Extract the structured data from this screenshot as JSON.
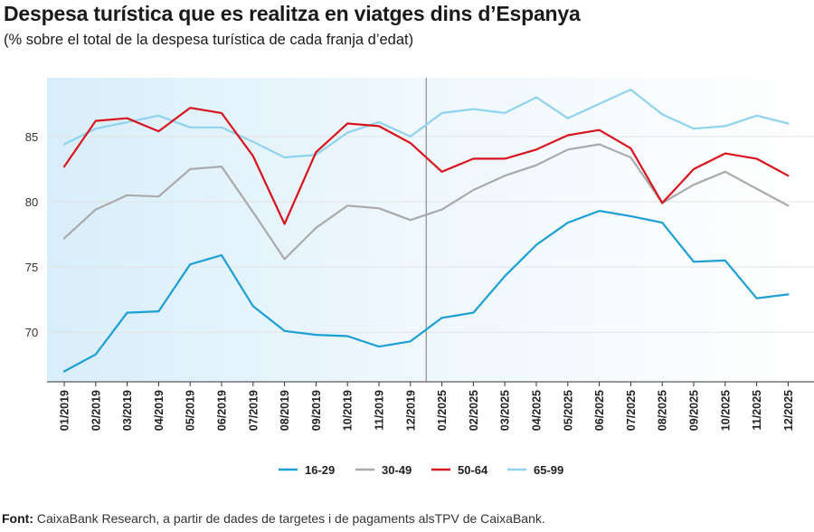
{
  "title": "Despesa turística que es realitza en viatges dins d’Espanya",
  "subtitle": "(% sobre el total de la despesa turística de cada franja d’edat)",
  "source_label": "Font:",
  "source_text": "CaixaBank Research, a partir de dades de targetes i de pagaments alsTPV de CaixaBank.",
  "colors": {
    "s1629": "#1a9fd6",
    "s3049": "#aaaaaa",
    "s5064": "#d7141e",
    "s6599": "#8fd3f0",
    "bg_left": "#d8eefa",
    "bg_right": "#ffffff",
    "grid": "#e3e3e3",
    "divider": "#777777"
  },
  "chart_data": {
    "type": "line",
    "title": "Despesa turística que es realitza en viatges dins d’Espanya",
    "subtitle": "(% sobre el total de la despesa turística de cada franja d’edat)",
    "xlabel": "",
    "ylabel": "",
    "ylim": [
      66.2,
      89.5
    ],
    "yticks": [
      70,
      75,
      80,
      85
    ],
    "grid": true,
    "legend": "bottom",
    "categories": [
      "01/2019",
      "02/2019",
      "03/2019",
      "04/2019",
      "05/2019",
      "06/2019",
      "07/2019",
      "08/2019",
      "09/2019",
      "10/2019",
      "11/2019",
      "12/2019",
      "01/2025",
      "02/2025",
      "03/2025",
      "04/2025",
      "05/2025",
      "06/2025",
      "07/2025",
      "08/2025",
      "09/2025",
      "10/2025",
      "11/2025",
      "12/2025"
    ],
    "series": [
      {
        "name": "16-29",
        "color": "#1a9fd6",
        "values": [
          67.0,
          68.3,
          71.5,
          71.6,
          75.2,
          75.9,
          72.0,
          70.1,
          69.8,
          69.7,
          68.9,
          69.3,
          71.1,
          71.5,
          74.3,
          76.7,
          78.4,
          79.3,
          78.9,
          78.4,
          75.4,
          75.5,
          72.6,
          72.9
        ]
      },
      {
        "name": "30-49",
        "color": "#aaaaaa",
        "values": [
          77.2,
          79.4,
          80.5,
          80.4,
          82.5,
          82.7,
          79.2,
          75.6,
          78.0,
          79.7,
          79.5,
          78.6,
          79.4,
          80.9,
          82.0,
          82.8,
          84.0,
          84.4,
          83.4,
          79.9,
          81.3,
          82.3,
          81.0,
          79.7
        ]
      },
      {
        "name": "50-64",
        "color": "#d7141e",
        "values": [
          82.7,
          86.2,
          86.4,
          85.4,
          87.2,
          86.8,
          83.5,
          78.3,
          83.8,
          86.0,
          85.8,
          84.5,
          82.3,
          83.3,
          83.3,
          84.0,
          85.1,
          85.5,
          84.1,
          79.9,
          82.5,
          83.7,
          83.3,
          82.0
        ]
      },
      {
        "name": "65-99",
        "color": "#8fd3f0",
        "values": [
          84.4,
          85.6,
          86.1,
          86.6,
          85.7,
          85.7,
          84.6,
          83.4,
          83.6,
          85.3,
          86.1,
          85.0,
          86.8,
          87.1,
          86.8,
          88.0,
          86.4,
          87.5,
          88.6,
          86.7,
          85.6,
          85.8,
          86.6,
          86.0
        ]
      }
    ],
    "divider_between": [
      "12/2019",
      "01/2025"
    ]
  }
}
